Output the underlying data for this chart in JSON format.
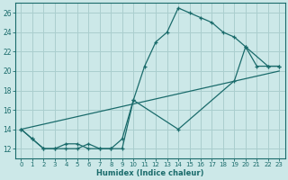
{
  "xlabel": "Humidex (Indice chaleur)",
  "bg_color": "#cce8e8",
  "grid_color": "#aacece",
  "line_color": "#1a6b6b",
  "xlim": [
    -0.5,
    23.5
  ],
  "ylim": [
    11,
    27
  ],
  "xticks": [
    0,
    1,
    2,
    3,
    4,
    5,
    6,
    7,
    8,
    9,
    10,
    11,
    12,
    13,
    14,
    15,
    16,
    17,
    18,
    19,
    20,
    21,
    22,
    23
  ],
  "yticks": [
    12,
    14,
    16,
    18,
    20,
    22,
    24,
    26
  ],
  "line1_x": [
    0,
    1,
    2,
    3,
    4,
    5,
    6,
    7,
    8,
    9,
    10,
    11,
    12,
    13,
    14,
    15,
    16,
    17,
    18,
    19,
    20,
    21,
    22,
    23
  ],
  "line1_y": [
    14,
    13,
    12,
    12,
    12.5,
    12.5,
    12,
    12,
    12,
    12,
    17,
    20.5,
    23,
    24,
    26.5,
    26,
    25.5,
    25,
    24,
    23.5,
    22.5,
    20.5,
    20.5,
    20.5
  ],
  "line2_x": [
    0,
    1,
    2,
    3,
    4,
    5,
    6,
    7,
    8,
    9,
    10,
    14,
    19,
    20,
    22,
    23
  ],
  "line2_y": [
    14,
    13,
    12,
    12,
    12,
    12,
    12.5,
    12,
    12,
    13,
    17,
    14,
    19,
    22.5,
    20.5,
    20.5
  ],
  "line3_x": [
    0,
    23
  ],
  "line3_y": [
    14,
    20
  ]
}
